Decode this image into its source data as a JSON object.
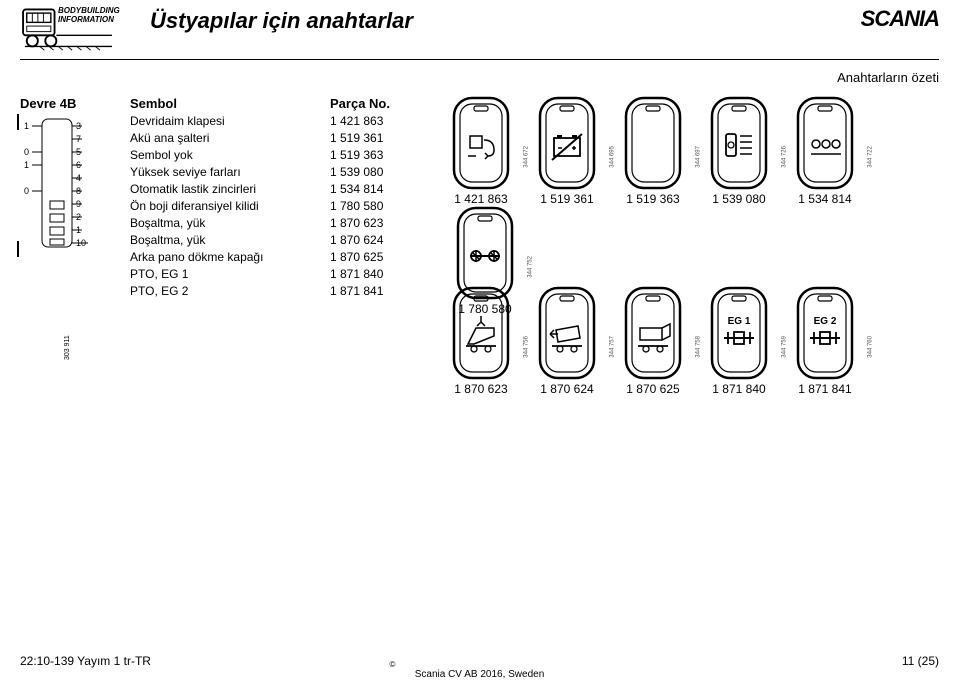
{
  "header": {
    "bodybuild_line1": "BODYBUILDING",
    "bodybuild_line2": "INFORMATION",
    "title": "Üstyapılar için anahtarlar",
    "brand": "SCANIA",
    "subtitle": "Anahtarların özeti"
  },
  "circuit": {
    "heading": "Devre 4B",
    "side_id": "303 911",
    "pins": [
      "3",
      "7",
      "5",
      "6",
      "4",
      "8",
      "9",
      "2",
      "1",
      "10"
    ],
    "binary": [
      "1",
      "",
      "0",
      "1",
      "",
      "0",
      "",
      "",
      "",
      ""
    ]
  },
  "table": {
    "symbol_heading": "Sembol",
    "part_heading": "Parça No.",
    "rows": [
      {
        "symbol": "Devridaim klapesi",
        "part": "1 421 863"
      },
      {
        "symbol": "Akü ana şalteri",
        "part": "1 519 361"
      },
      {
        "symbol": "Sembol yok",
        "part": "1 519 363"
      },
      {
        "symbol": "Yüksek seviye farları",
        "part": "1 539 080"
      },
      {
        "symbol": "Otomatik lastik zincirleri",
        "part": "1 534 814"
      },
      {
        "symbol": "Ön boji diferansiyel kilidi",
        "part": "1 780 580"
      },
      {
        "symbol": "Boşaltma, yük",
        "part": "1 870 623"
      },
      {
        "symbol": "Boşaltma, yük",
        "part": "1 870 624"
      },
      {
        "symbol": "Arka pano dökme kapağı",
        "part": "1 870 625"
      },
      {
        "symbol": "PTO, EG 1",
        "part": "1 871 840"
      },
      {
        "symbol": "PTO, EG 2",
        "part": "1 871 841"
      }
    ]
  },
  "switches_row1": [
    {
      "part": "1 421 863",
      "side": "344 672",
      "icon": "recirculation"
    },
    {
      "part": "1 519 361",
      "side": "344 695",
      "icon": "battery-off"
    },
    {
      "part": "1 519 363",
      "side": "344 697",
      "icon": "blank"
    },
    {
      "part": "1 539 080",
      "side": "344 726",
      "icon": "high-beam"
    },
    {
      "part": "1 534 814",
      "side": "344 722",
      "icon": "tyre-chain"
    },
    {
      "part": "1 780 580",
      "side": "344 752",
      "icon": "diff-lock"
    }
  ],
  "switches_row2": [
    {
      "part": "1 870 623",
      "side": "344 756",
      "icon": "tipper-up"
    },
    {
      "part": "1 870 624",
      "side": "344 757",
      "icon": "tipper-side"
    },
    {
      "part": "1 870 625",
      "side": "344 758",
      "icon": "tailgate"
    },
    {
      "part": "1 871 840",
      "side": "344 759",
      "icon": "eg1",
      "text": "EG 1"
    },
    {
      "part": "1 871 841",
      "side": "344 760",
      "icon": "eg2",
      "text": "EG 2"
    }
  ],
  "footer": {
    "left": "22:10-139 Yayım 1 tr-TR",
    "right": "11 (25)",
    "center": "Scania CV AB 2016, Sweden",
    "copy": "©"
  },
  "colors": {
    "text": "#000000",
    "bg": "#ffffff",
    "stroke": "#000000"
  }
}
